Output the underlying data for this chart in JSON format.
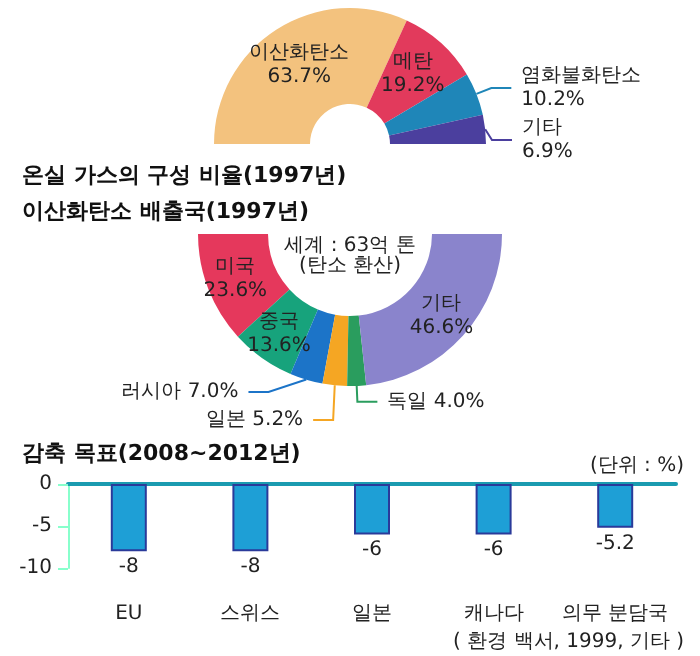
{
  "chart_data": [
    {
      "type": "donut",
      "title": "온실 가스의 구성 비율(1997년)",
      "categories": [
        "이산화탄소",
        "메탄",
        "염화불화탄소",
        "기타"
      ],
      "values": [
        63.7,
        19.2,
        10.2,
        6.9
      ],
      "value_labels": [
        "63.7%",
        "19.2%",
        "10.2%",
        "6.9%"
      ],
      "colors": [
        "#f3c27e",
        "#e23a5c",
        "#1f86b8",
        "#4b3f9e"
      ],
      "legend": false
    },
    {
      "type": "donut",
      "title": "이산화탄소 배출국(1997년)",
      "categories": [
        "미국",
        "중국",
        "러시아",
        "일본",
        "독일",
        "기타"
      ],
      "values": [
        23.6,
        13.6,
        7.0,
        5.2,
        4.0,
        46.6
      ],
      "value_labels": [
        "23.6%",
        "13.6%",
        "7.0%",
        "5.2%",
        "4.0%",
        "46.6%"
      ],
      "colors": [
        "#e5385c",
        "#17a37c",
        "#1c74c8",
        "#f5a623",
        "#2a9d5e",
        "#8a84cc"
      ],
      "annotations": [
        "세계 : 63억 톤\n(탄소 환산)"
      ],
      "legend": false
    },
    {
      "type": "bar",
      "title": "감축 목표(2008~2012년)",
      "categories": [
        "EU",
        "스위스",
        "일본",
        "캐나다",
        "의무 분담국"
      ],
      "values": [
        -8,
        -8,
        -6,
        -6,
        -5.2
      ],
      "color": "#1e9fd6",
      "ylim": [
        -10,
        0
      ],
      "yticks": [
        -10,
        -5,
        0
      ],
      "data_labels": true,
      "grid": false,
      "legend": false,
      "annotations": [
        "(단위 : %)",
        "( 환경 백서, 1999, 기타 )"
      ]
    }
  ]
}
